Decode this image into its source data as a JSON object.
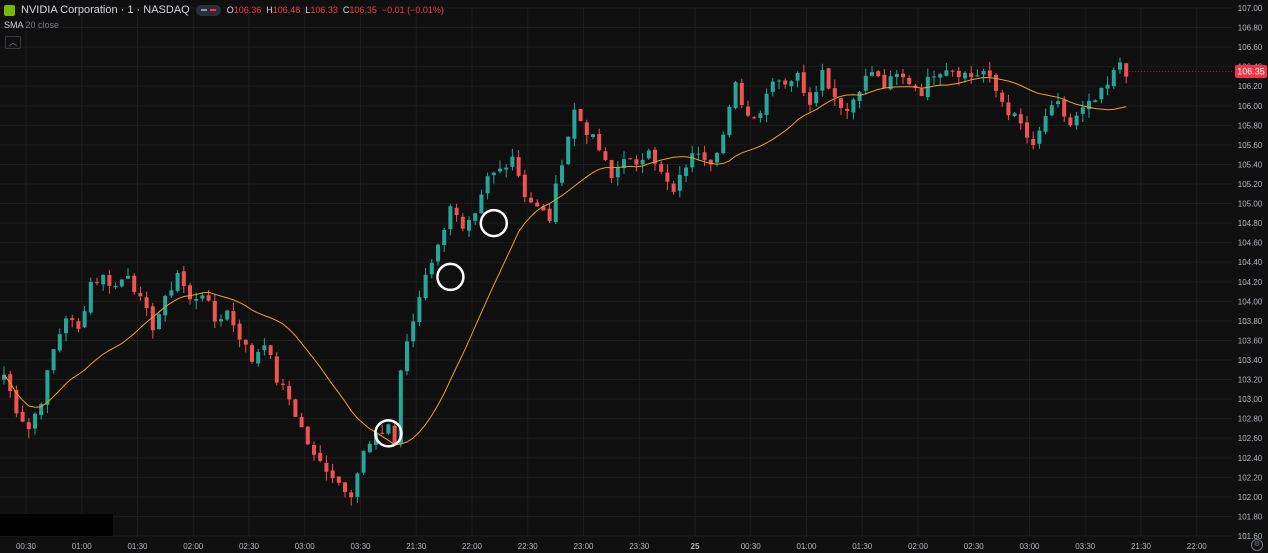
{
  "header": {
    "symbol_title": "NVIDIA Corporation · 1 · NASDAQ",
    "ohlc": [
      {
        "k": "O",
        "v": "106.36"
      },
      {
        "k": "H",
        "v": "106.48"
      },
      {
        "k": "L",
        "v": "106.33"
      },
      {
        "k": "C",
        "v": "106.35"
      },
      {
        "k": "",
        "v": "−0.01 (−0.01%)"
      }
    ],
    "indicator_name": "SMA",
    "indicator_params": "20 close"
  },
  "colors": {
    "background": "#0f0f0f",
    "up": "#26a69a",
    "down": "#ef5350",
    "sma": "#f0a020",
    "price_label": "#f23645",
    "axis_text": "#b2b5be",
    "grid": "#1c1c1c"
  },
  "chart_data": {
    "type": "candlestick",
    "title": "NVIDIA Corporation · 1 · NASDAQ",
    "ylim": [
      101.6,
      107.0
    ],
    "y_ticks": [
      "107.00",
      "106.80",
      "106.60",
      "106.40",
      "106.20",
      "106.00",
      "105.80",
      "105.60",
      "105.40",
      "105.20",
      "105.00",
      "104.80",
      "104.60",
      "104.40",
      "104.20",
      "104.00",
      "103.80",
      "103.60",
      "103.40",
      "103.20",
      "103.00",
      "102.80",
      "102.60",
      "102.40",
      "102.20",
      "102.00",
      "101.80",
      "101.60"
    ],
    "x_ticks": [
      "00:30",
      "01:00",
      "01:30",
      "02:00",
      "02:30",
      "03:00",
      "03:30",
      "21:30",
      "22:00",
      "22:30",
      "23:00",
      "23:30",
      "25",
      "00:30",
      "01:00",
      "01:30",
      "02:00",
      "02:30",
      "03:00",
      "03:30",
      "21:30",
      "22:00"
    ],
    "current_price": "106.35",
    "close_path": [
      [
        0,
        103.25
      ],
      [
        2,
        102.9
      ],
      [
        4,
        102.7
      ],
      [
        6,
        103.0
      ],
      [
        8,
        103.5
      ],
      [
        10,
        103.85
      ],
      [
        12,
        103.7
      ],
      [
        14,
        104.2
      ],
      [
        16,
        104.25
      ],
      [
        18,
        104.15
      ],
      [
        20,
        104.3
      ],
      [
        22,
        104.0
      ],
      [
        24,
        103.75
      ],
      [
        26,
        104.0
      ],
      [
        28,
        104.3
      ],
      [
        30,
        104.0
      ],
      [
        32,
        104.1
      ],
      [
        34,
        103.8
      ],
      [
        36,
        103.9
      ],
      [
        38,
        103.65
      ],
      [
        40,
        103.4
      ],
      [
        42,
        103.6
      ],
      [
        44,
        103.2
      ],
      [
        46,
        103.0
      ],
      [
        48,
        102.7
      ],
      [
        50,
        102.4
      ],
      [
        52,
        102.3
      ],
      [
        54,
        102.15
      ],
      [
        56,
        102.05
      ],
      [
        58,
        102.45
      ],
      [
        60,
        102.6
      ],
      [
        62,
        102.75
      ],
      [
        63,
        102.55
      ],
      [
        64,
        103.3
      ],
      [
        66,
        103.8
      ],
      [
        68,
        104.3
      ],
      [
        70,
        104.55
      ],
      [
        72,
        105.0
      ],
      [
        74,
        104.7
      ],
      [
        76,
        104.85
      ],
      [
        78,
        105.25
      ],
      [
        80,
        105.35
      ],
      [
        82,
        105.5
      ],
      [
        84,
        105.1
      ],
      [
        86,
        104.95
      ],
      [
        88,
        104.85
      ],
      [
        90,
        105.45
      ],
      [
        92,
        105.95
      ],
      [
        94,
        105.75
      ],
      [
        96,
        105.55
      ],
      [
        98,
        105.25
      ],
      [
        100,
        105.5
      ],
      [
        102,
        105.35
      ],
      [
        104,
        105.6
      ],
      [
        106,
        105.3
      ],
      [
        108,
        105.1
      ],
      [
        110,
        105.4
      ],
      [
        112,
        105.55
      ],
      [
        114,
        105.45
      ],
      [
        116,
        105.7
      ],
      [
        118,
        106.2
      ],
      [
        120,
        105.9
      ],
      [
        122,
        105.95
      ],
      [
        124,
        106.3
      ],
      [
        126,
        106.25
      ],
      [
        128,
        106.3
      ],
      [
        130,
        106.05
      ],
      [
        132,
        106.35
      ],
      [
        134,
        106.1
      ],
      [
        136,
        105.95
      ],
      [
        138,
        106.2
      ],
      [
        140,
        106.35
      ],
      [
        142,
        106.2
      ],
      [
        144,
        106.3
      ],
      [
        146,
        106.25
      ],
      [
        148,
        106.15
      ],
      [
        150,
        106.35
      ],
      [
        152,
        106.4
      ],
      [
        154,
        106.35
      ],
      [
        156,
        106.3
      ],
      [
        158,
        106.35
      ],
      [
        160,
        106.15
      ],
      [
        162,
        105.95
      ],
      [
        164,
        105.8
      ],
      [
        166,
        105.55
      ],
      [
        168,
        105.9
      ],
      [
        170,
        106.0
      ],
      [
        172,
        105.8
      ],
      [
        174,
        105.95
      ],
      [
        176,
        106.05
      ],
      [
        178,
        106.2
      ],
      [
        180,
        106.45
      ],
      [
        181,
        106.35
      ]
    ],
    "sma_period": 20,
    "annotations": [
      {
        "type": "circle",
        "label": "",
        "bar": 62,
        "price": 102.65
      },
      {
        "type": "circle",
        "label": "",
        "bar": 72,
        "price": 104.25
      },
      {
        "type": "circle",
        "label": "",
        "bar": 79,
        "price": 104.8
      }
    ],
    "grid": true
  }
}
